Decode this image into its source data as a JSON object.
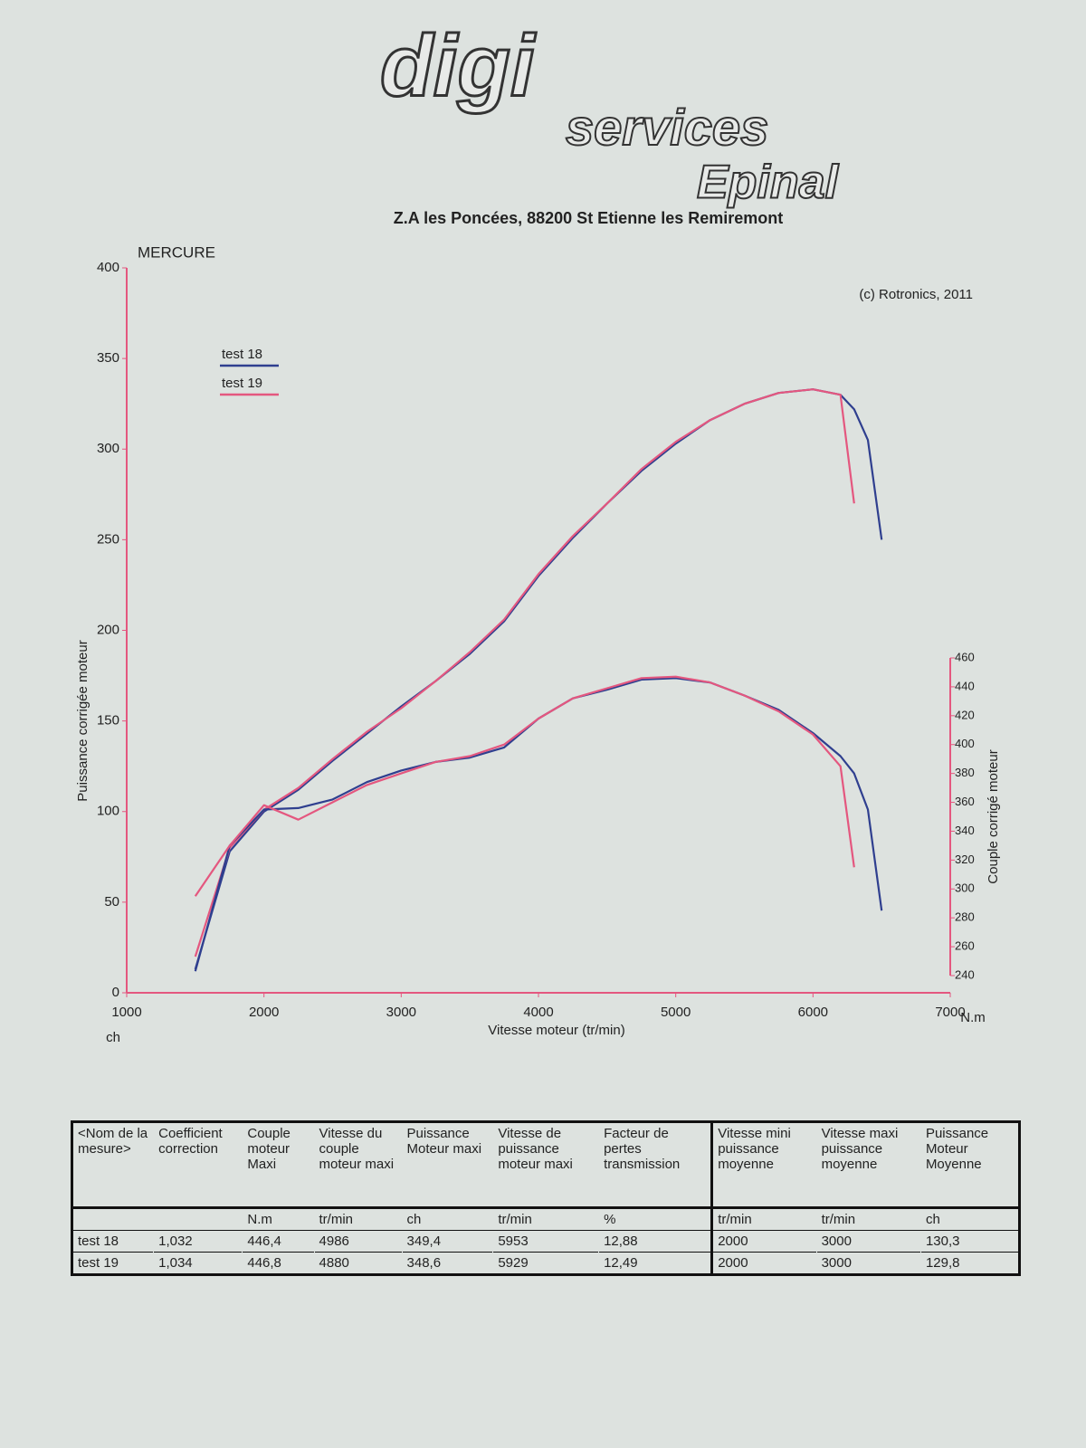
{
  "header": {
    "logo": "digi",
    "logo_sub": "services",
    "logo_city": "Epinal",
    "address": "Z.A les Poncées, 88200 St Etienne les Remiremont"
  },
  "chart_data": {
    "type": "line",
    "title": "MERCURE",
    "annotation": "(c) Rotronics, 2011",
    "xlabel": "Vitesse moteur (tr/min)",
    "ylabel": "Puissance corrigée moteur",
    "y2label": "Couple corrigé moteur",
    "yunit": "ch",
    "y2unit": "N.m",
    "x": [
      1500,
      1750,
      2000,
      2250,
      2500,
      2750,
      3000,
      3250,
      3500,
      3750,
      4000,
      4250,
      4500,
      4750,
      5000,
      5250,
      5500,
      5750,
      6000,
      6200,
      6300,
      6400,
      6500
    ],
    "series": [
      {
        "name": "test 18",
        "color": "#2f3f8f",
        "values": [
          13,
          78,
          100,
          112,
          128,
          143,
          158,
          172,
          187,
          205,
          230,
          251,
          270,
          288,
          303,
          316,
          325,
          331,
          333,
          330,
          322,
          305,
          250
        ]
      },
      {
        "name": "test 19",
        "color": "#e4577f",
        "values": [
          20,
          80,
          101,
          113,
          129,
          144,
          157,
          172,
          188,
          206,
          231,
          252,
          270,
          289,
          304,
          316,
          325,
          331,
          333,
          330,
          270,
          null,
          null
        ]
      },
      {
        "color": "#2f3f8f",
        "axis": "y2",
        "values": [
          243,
          330,
          355,
          356,
          362,
          374,
          382,
          388,
          391,
          398,
          418,
          432,
          438,
          445,
          446,
          443,
          434,
          424,
          408,
          392,
          380,
          355,
          285
        ]
      },
      {
        "color": "#e4577f",
        "axis": "y2",
        "values": [
          295,
          330,
          358,
          348,
          360,
          372,
          380,
          388,
          392,
          400,
          418,
          432,
          439,
          446,
          447,
          443,
          434,
          423,
          407,
          385,
          315,
          null,
          null
        ]
      }
    ],
    "xlim": [
      1000,
      7000
    ],
    "xticks": [
      1000,
      2000,
      3000,
      4000,
      5000,
      6000,
      7000
    ],
    "ylim": [
      0,
      400
    ],
    "yticks": [
      0,
      50,
      100,
      150,
      200,
      250,
      300,
      350,
      400
    ],
    "y2lim": [
      240,
      460
    ],
    "y2ticks": [
      240,
      260,
      280,
      300,
      320,
      340,
      360,
      380,
      400,
      420,
      440,
      460
    ],
    "axis_color": "#e4577f"
  },
  "table": {
    "columns": [
      {
        "header": "<Nom de la mesure>"
      },
      {
        "header": "Coefficient correction"
      },
      {
        "header": "Couple moteur Maxi",
        "unit": "N.m"
      },
      {
        "header": "Vitesse du couple moteur maxi",
        "unit": "tr/min"
      },
      {
        "header": "Puissance Moteur maxi",
        "unit": "ch"
      },
      {
        "header": "Vitesse de puissance moteur maxi",
        "unit": "tr/min"
      },
      {
        "header": "Facteur de pertes transmission",
        "unit": "%"
      },
      {
        "header": "Vitesse mini puissance moyenne",
        "unit": "tr/min"
      },
      {
        "header": "Vitesse maxi puissance moyenne",
        "unit": "tr/min"
      },
      {
        "header": "Puissance Moteur Moyenne",
        "unit": "ch"
      }
    ],
    "rows": [
      [
        "test 18",
        "1,032",
        "446,4",
        "4986",
        "349,4",
        "5953",
        "12,88",
        "2000",
        "3000",
        "130,3"
      ],
      [
        "test 19",
        "1,034",
        "446,8",
        "4880",
        "348,6",
        "5929",
        "12,49",
        "2000",
        "3000",
        "129,8"
      ]
    ]
  }
}
